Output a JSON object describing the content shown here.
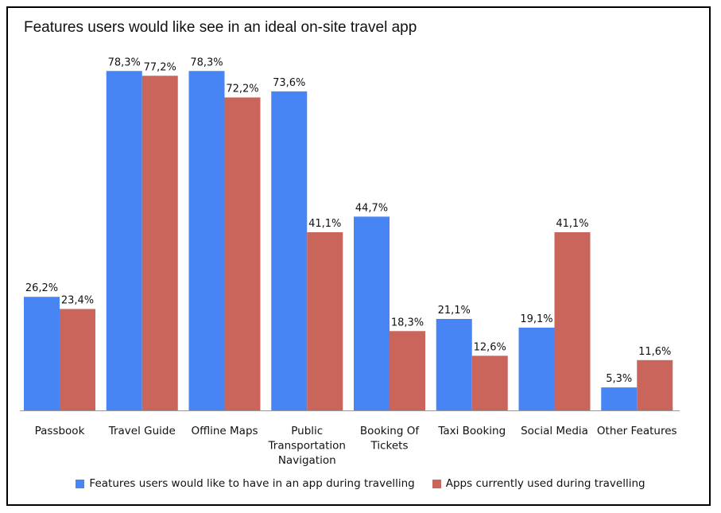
{
  "chart_data": {
    "type": "bar",
    "title": "Features users would like see in an ideal on-site travel app",
    "categories": [
      [
        "Passbook"
      ],
      [
        "Travel Guide"
      ],
      [
        "Offline Maps"
      ],
      [
        "Public",
        "Transportation",
        "Navigation"
      ],
      [
        "Booking Of",
        "Tickets"
      ],
      [
        "Taxi Booking"
      ],
      [
        "Social Media"
      ],
      [
        "Other Features"
      ]
    ],
    "series": [
      {
        "name": "Features users would like to have in an app during travelling",
        "color": "#4785f4",
        "values": [
          26.2,
          78.3,
          78.3,
          73.6,
          44.7,
          21.1,
          19.1,
          5.3
        ],
        "labels": [
          "26,2%",
          "78,3%",
          "78,3%",
          "73,6%",
          "44,7%",
          "21,1%",
          "19,1%",
          "5,3%"
        ]
      },
      {
        "name": "Apps currently used during travelling",
        "color": "#c9655b",
        "values": [
          23.4,
          77.2,
          72.2,
          41.1,
          18.3,
          12.6,
          41.1,
          11.6
        ],
        "labels": [
          "23,4%",
          "77,2%",
          "72,2%",
          "41,1%",
          "18,3%",
          "12,6%",
          "41,1%",
          "11,6%"
        ]
      }
    ],
    "ylim": [
      0,
      100
    ],
    "grid": false,
    "legend": "bottom"
  }
}
